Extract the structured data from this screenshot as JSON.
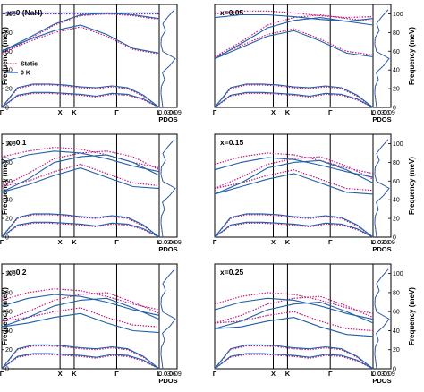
{
  "colors": {
    "static": "#c0187d",
    "zeroK": "#1f5fa8"
  },
  "legend": {
    "static": "Static",
    "zeroK": "0 K"
  },
  "ylabel": "Frequency (meV)",
  "pdos_label": "PDOS",
  "pdos_ticks": [
    "0.03",
    "0.06",
    "0.09"
  ],
  "x_ticks": [
    "Γ",
    "X",
    "K",
    "Γ",
    "L"
  ],
  "y_ticks": [
    "0",
    "20",
    "40",
    "60",
    "80",
    "100"
  ],
  "chart_data": [
    {
      "type": "line",
      "label": "x=0 (NaH)",
      "ylim": [
        0,
        110
      ],
      "xlabel": "",
      "ylabel": "Frequency (meV)",
      "series": [
        {
          "name": "Static",
          "style": "dotted",
          "optical": [
            [
              100,
              100,
              100,
              100,
              100,
              100,
              100
            ],
            [
              58,
              72,
              88,
              98,
              100,
              98,
              94
            ],
            [
              58,
              70,
              80,
              86,
              76,
              62,
              57
            ]
          ],
          "acoustic": [
            [
              0,
              20,
              24,
              24,
              23,
              21,
              20,
              22,
              20,
              12,
              0
            ],
            [
              0,
              12,
              15,
              15,
              14,
              13,
              11,
              14,
              13,
              8,
              0
            ]
          ],
          "pdos": [
            [
              0.02,
              0.015,
              0.01,
              0.012,
              0.03,
              0.018,
              0.06,
              0.09,
              0.02,
              0.01,
              0.012,
              0.035,
              0.02,
              0.05,
              0.085
            ]
          ]
        },
        {
          "name": "0 K",
          "style": "solid",
          "optical": [
            [
              101,
              101,
              101,
              101,
              101,
              101,
              101
            ],
            [
              60,
              74,
              89,
              99,
              101,
              99,
              95
            ],
            [
              60,
              72,
              82,
              88,
              78,
              63,
              58
            ]
          ],
          "acoustic": [
            [
              0,
              21,
              25,
              25,
              24,
              22,
              21,
              23,
              21,
              13,
              0
            ],
            [
              0,
              13,
              16,
              16,
              15,
              14,
              12,
              15,
              14,
              9,
              0
            ]
          ],
          "pdos": [
            [
              0.02,
              0.015,
              0.01,
              0.012,
              0.03,
              0.018,
              0.06,
              0.09,
              0.02,
              0.01,
              0.012,
              0.035,
              0.02,
              0.05,
              0.085
            ]
          ]
        }
      ]
    },
    {
      "type": "line",
      "label": "x=0.05",
      "ylim": [
        0,
        110
      ],
      "xlabel": "",
      "ylabel": "Frequency (meV)",
      "series": [
        {
          "name": "Static",
          "style": "dotted",
          "optical": [
            [
              100,
              103,
              103,
              101,
              98,
              96,
              97
            ],
            [
              54,
              70,
              88,
              96,
              99,
              95,
              92
            ],
            [
              54,
              66,
              78,
              84,
              73,
              60,
              56
            ]
          ],
          "acoustic": [
            [
              0,
              20,
              24,
              24,
              23,
              21,
              20,
              22,
              20,
              12,
              0
            ],
            [
              0,
              12,
              15,
              15,
              14,
              13,
              11,
              14,
              13,
              8,
              0
            ]
          ],
          "pdos": [
            [
              0.02,
              0.015,
              0.01,
              0.012,
              0.03,
              0.018,
              0.06,
              0.09,
              0.02,
              0.01,
              0.012,
              0.035,
              0.02,
              0.05,
              0.085
            ]
          ]
        },
        {
          "name": "0 K",
          "style": "solid",
          "optical": [
            [
              96,
              99,
              99,
              97,
              94,
              92,
              95
            ],
            [
              52,
              68,
              85,
              93,
              96,
              92,
              88
            ],
            [
              52,
              64,
              76,
              82,
              71,
              58,
              54
            ]
          ],
          "acoustic": [
            [
              0,
              21,
              25,
              25,
              24,
              22,
              21,
              23,
              21,
              13,
              0
            ],
            [
              0,
              13,
              16,
              16,
              15,
              14,
              12,
              15,
              14,
              9,
              0
            ]
          ],
          "pdos": [
            [
              0.02,
              0.015,
              0.01,
              0.012,
              0.03,
              0.018,
              0.06,
              0.09,
              0.02,
              0.01,
              0.012,
              0.035,
              0.02,
              0.05,
              0.085
            ]
          ]
        }
      ]
    },
    {
      "type": "line",
      "label": "x=0.1",
      "ylim": [
        0,
        110
      ],
      "xlabel": "",
      "ylabel": "Frequency (meV)",
      "series": [
        {
          "name": "Static",
          "style": "dotted",
          "optical": [
            [
              86,
              92,
              96,
              94,
              88,
              80,
              74
            ],
            [
              54,
              68,
              84,
              90,
              92,
              86,
              72
            ],
            [
              54,
              60,
              70,
              78,
              68,
              58,
              55
            ]
          ],
          "acoustic": [
            [
              0,
              20,
              24,
              24,
              23,
              21,
              20,
              22,
              20,
              12,
              0
            ],
            [
              0,
              12,
              15,
              15,
              14,
              13,
              11,
              14,
              13,
              8,
              0
            ]
          ],
          "pdos": [
            [
              0.02,
              0.015,
              0.01,
              0.012,
              0.03,
              0.018,
              0.06,
              0.09,
              0.02,
              0.01,
              0.012,
              0.035,
              0.02,
              0.05,
              0.085
            ]
          ]
        },
        {
          "name": "0 K",
          "style": "solid",
          "optical": [
            [
              80,
              88,
              92,
              90,
              84,
              76,
              70
            ],
            [
              48,
              62,
              80,
              86,
              88,
              80,
              66
            ],
            [
              48,
              56,
              66,
              74,
              64,
              54,
              52
            ]
          ],
          "acoustic": [
            [
              0,
              21,
              25,
              25,
              24,
              22,
              21,
              23,
              21,
              13,
              0
            ],
            [
              0,
              13,
              16,
              16,
              15,
              14,
              12,
              15,
              14,
              9,
              0
            ]
          ],
          "pdos": [
            [
              0.02,
              0.015,
              0.01,
              0.012,
              0.03,
              0.018,
              0.06,
              0.09,
              0.02,
              0.01,
              0.012,
              0.035,
              0.02,
              0.05,
              0.085
            ]
          ]
        }
      ]
    },
    {
      "type": "line",
      "label": "x=0.15",
      "ylim": [
        0,
        110
      ],
      "xlabel": "",
      "ylabel": "Frequency (meV)",
      "series": [
        {
          "name": "Static",
          "style": "dotted",
          "optical": [
            [
              78,
              86,
              90,
              88,
              82,
              74,
              68
            ],
            [
              52,
              64,
              78,
              84,
              86,
              76,
              62
            ],
            [
              52,
              58,
              66,
              72,
              62,
              52,
              50
            ]
          ],
          "acoustic": [
            [
              0,
              20,
              24,
              24,
              23,
              21,
              20,
              22,
              20,
              12,
              0
            ],
            [
              0,
              12,
              15,
              15,
              14,
              13,
              11,
              14,
              13,
              8,
              0
            ]
          ],
          "pdos": [
            [
              0.02,
              0.015,
              0.01,
              0.012,
              0.03,
              0.018,
              0.06,
              0.09,
              0.02,
              0.01,
              0.012,
              0.035,
              0.02,
              0.05,
              0.085
            ]
          ]
        },
        {
          "name": "0 K",
          "style": "solid",
          "optical": [
            [
              72,
              80,
              85,
              83,
              77,
              70,
              64
            ],
            [
              46,
              58,
              74,
              80,
              82,
              72,
              58
            ],
            [
              46,
              54,
              62,
              68,
              58,
              48,
              46
            ]
          ],
          "acoustic": [
            [
              0,
              21,
              25,
              25,
              24,
              22,
              21,
              23,
              21,
              13,
              0
            ],
            [
              0,
              13,
              16,
              16,
              15,
              14,
              12,
              15,
              14,
              9,
              0
            ]
          ],
          "pdos": [
            [
              0.02,
              0.015,
              0.01,
              0.012,
              0.03,
              0.018,
              0.06,
              0.09,
              0.02,
              0.01,
              0.012,
              0.035,
              0.02,
              0.05,
              0.085
            ]
          ]
        }
      ]
    },
    {
      "type": "line",
      "label": "x=0.2",
      "ylim": [
        0,
        110
      ],
      "xlabel": "",
      "ylabel": "Frequency (meV)",
      "series": [
        {
          "name": "Static",
          "style": "dotted",
          "optical": [
            [
              72,
              80,
              84,
              82,
              76,
              68,
              62
            ],
            [
              50,
              60,
              72,
              78,
              80,
              70,
              58
            ],
            [
              50,
              54,
              60,
              64,
              54,
              46,
              44
            ]
          ],
          "acoustic": [
            [
              0,
              20,
              24,
              24,
              23,
              21,
              20,
              22,
              20,
              12,
              0
            ],
            [
              0,
              12,
              15,
              15,
              14,
              13,
              11,
              14,
              13,
              8,
              0
            ]
          ],
          "pdos": [
            [
              0.02,
              0.015,
              0.01,
              0.012,
              0.03,
              0.018,
              0.06,
              0.09,
              0.02,
              0.01,
              0.012,
              0.035,
              0.02,
              0.05,
              0.085
            ]
          ]
        },
        {
          "name": "0 K",
          "style": "solid",
          "optical": [
            [
              66,
              74,
              78,
              76,
              70,
              62,
              56
            ],
            [
              44,
              54,
              66,
              72,
              74,
              64,
              52
            ],
            [
              44,
              48,
              54,
              58,
              48,
              40,
              38
            ]
          ],
          "acoustic": [
            [
              0,
              21,
              25,
              25,
              24,
              22,
              21,
              23,
              21,
              13,
              0
            ],
            [
              0,
              13,
              16,
              16,
              15,
              14,
              12,
              15,
              14,
              9,
              0
            ]
          ],
          "pdos": [
            [
              0.02,
              0.015,
              0.01,
              0.012,
              0.03,
              0.018,
              0.06,
              0.09,
              0.02,
              0.01,
              0.012,
              0.035,
              0.02,
              0.05,
              0.085
            ]
          ]
        }
      ]
    },
    {
      "type": "line",
      "label": "x=0.25",
      "ylim": [
        0,
        110
      ],
      "xlabel": "",
      "ylabel": "Frequency (meV)",
      "series": [
        {
          "name": "Static",
          "style": "dotted",
          "optical": [
            [
              68,
              76,
              80,
              78,
              72,
              64,
              58
            ],
            [
              48,
              56,
              68,
              74,
              76,
              66,
              54
            ],
            [
              48,
              50,
              56,
              60,
              50,
              42,
              40
            ]
          ],
          "acoustic": [
            [
              0,
              20,
              24,
              24,
              23,
              21,
              20,
              22,
              20,
              12,
              0
            ],
            [
              0,
              12,
              15,
              15,
              14,
              13,
              11,
              14,
              13,
              8,
              0
            ]
          ],
          "pdos": [
            [
              0.02,
              0.015,
              0.01,
              0.012,
              0.03,
              0.018,
              0.06,
              0.09,
              0.02,
              0.01,
              0.012,
              0.035,
              0.02,
              0.05,
              0.085
            ]
          ]
        },
        {
          "name": "0 K",
          "style": "solid",
          "optical": [
            [
              62,
              70,
              74,
              72,
              66,
              58,
              52
            ],
            [
              42,
              50,
              62,
              68,
              70,
              60,
              48
            ],
            [
              42,
              44,
              50,
              54,
              44,
              36,
              34
            ]
          ],
          "acoustic": [
            [
              0,
              21,
              25,
              25,
              24,
              22,
              21,
              23,
              21,
              13,
              0
            ],
            [
              0,
              13,
              16,
              16,
              15,
              14,
              12,
              15,
              14,
              9,
              0
            ]
          ],
          "pdos": [
            [
              0.02,
              0.015,
              0.01,
              0.012,
              0.03,
              0.018,
              0.06,
              0.09,
              0.02,
              0.01,
              0.012,
              0.035,
              0.02,
              0.05,
              0.085
            ]
          ]
        }
      ]
    }
  ]
}
